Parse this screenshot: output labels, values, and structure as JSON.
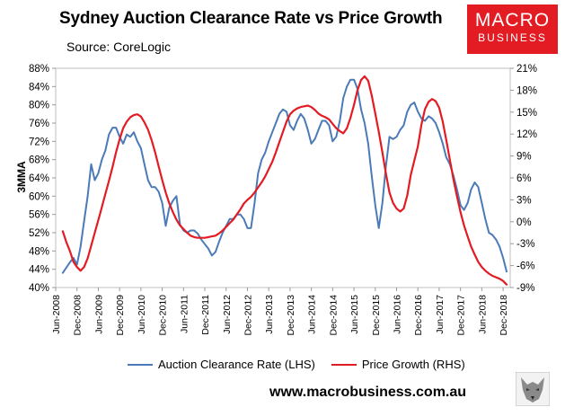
{
  "header": {
    "title": "Sydney Auction Clearance Rate vs Price Growth",
    "source": "Source: CoreLogic"
  },
  "logo": {
    "line1": "MACRO",
    "line2": "BUSINESS"
  },
  "footer": {
    "website": "www.macrobusiness.com.au"
  },
  "colors": {
    "clearance": "#4a7ab7",
    "growth": "#e31b23",
    "logo_bg": "#e31b23"
  },
  "chart_data": {
    "type": "line",
    "ylabel": "3MMA",
    "ylim": [
      40,
      88
    ],
    "y2lim": [
      -9,
      21
    ],
    "y_ticks": [
      "40%",
      "44%",
      "48%",
      "52%",
      "56%",
      "60%",
      "64%",
      "68%",
      "72%",
      "76%",
      "80%",
      "84%",
      "88%"
    ],
    "y2_ticks": [
      "-9%",
      "-6%",
      "-3%",
      "0%",
      "3%",
      "6%",
      "9%",
      "12%",
      "15%",
      "18%",
      "21%"
    ],
    "x_ticks": [
      "Jun-2008",
      "Dec-2008",
      "Jun-2009",
      "Dec-2009",
      "Jun-2010",
      "Dec-2010",
      "Jun-2011",
      "Dec-2011",
      "Jun-2012",
      "Dec-2012",
      "Jun-2013",
      "Dec-2013",
      "Jun-2014",
      "Dec-2014",
      "Jun-2015",
      "Dec-2015",
      "Jun-2016",
      "Dec-2016",
      "Jun-2017",
      "Dec-2017",
      "Jun-2018",
      "Dec-2018"
    ],
    "x_range": [
      "Jun-2008",
      "Dec-2018"
    ],
    "legend_position": "bottom",
    "series": [
      {
        "name": "Auction Clearance Rate (LHS)",
        "axis": "left",
        "points": [
          [
            "Aug-2008",
            43.2
          ],
          [
            "Oct-2008",
            45.5
          ],
          [
            "Nov-2008",
            46.5
          ],
          [
            "Dec-2008",
            45.0
          ],
          [
            "Jan-2009",
            49.0
          ],
          [
            "Feb-2009",
            54.5
          ],
          [
            "Mar-2009",
            60.0
          ],
          [
            "Apr-2009",
            67.0
          ],
          [
            "May-2009",
            63.5
          ],
          [
            "Jun-2009",
            65.0
          ],
          [
            "Jul-2009",
            68.0
          ],
          [
            "Aug-2009",
            70.0
          ],
          [
            "Sep-2009",
            73.5
          ],
          [
            "Oct-2009",
            75.0
          ],
          [
            "Nov-2009",
            75.0
          ],
          [
            "Dec-2009",
            73.0
          ],
          [
            "Jan-2010",
            71.5
          ],
          [
            "Feb-2010",
            73.5
          ],
          [
            "Mar-2010",
            73.0
          ],
          [
            "Apr-2010",
            74.0
          ],
          [
            "May-2010",
            72.0
          ],
          [
            "Jun-2010",
            70.5
          ],
          [
            "Jul-2010",
            67.0
          ],
          [
            "Aug-2010",
            63.5
          ],
          [
            "Sep-2010",
            62.0
          ],
          [
            "Oct-2010",
            62.0
          ],
          [
            "Nov-2010",
            61.0
          ],
          [
            "Dec-2010",
            58.5
          ],
          [
            "Jan-2011",
            53.5
          ],
          [
            "Feb-2011",
            57.5
          ],
          [
            "Mar-2011",
            59.0
          ],
          [
            "Apr-2011",
            60.0
          ],
          [
            "May-2011",
            53.8
          ],
          [
            "Jun-2011",
            52.5
          ],
          [
            "Jul-2011",
            52.0
          ],
          [
            "Aug-2011",
            52.5
          ],
          [
            "Sep-2011",
            52.5
          ],
          [
            "Oct-2011",
            51.8
          ],
          [
            "Nov-2011",
            50.5
          ],
          [
            "Dec-2011",
            49.5
          ],
          [
            "Jan-2012",
            48.5
          ],
          [
            "Feb-2012",
            47.0
          ],
          [
            "Mar-2012",
            47.8
          ],
          [
            "Apr-2012",
            50.0
          ],
          [
            "May-2012",
            52.0
          ],
          [
            "Jun-2012",
            53.5
          ],
          [
            "Jul-2012",
            55.0
          ],
          [
            "Aug-2012",
            55.0
          ],
          [
            "Sep-2012",
            56.0
          ],
          [
            "Oct-2012",
            56.0
          ],
          [
            "Nov-2012",
            55.0
          ],
          [
            "Dec-2012",
            53.0
          ],
          [
            "Jan-2013",
            53.0
          ],
          [
            "Feb-2013",
            58.5
          ],
          [
            "Mar-2013",
            65.0
          ],
          [
            "Apr-2013",
            68.0
          ],
          [
            "May-2013",
            69.5
          ],
          [
            "Jun-2013",
            72.0
          ],
          [
            "Jul-2013",
            74.0
          ],
          [
            "Aug-2013",
            76.0
          ],
          [
            "Sep-2013",
            78.0
          ],
          [
            "Oct-2013",
            79.0
          ],
          [
            "Nov-2013",
            78.5
          ],
          [
            "Dec-2013",
            75.5
          ],
          [
            "Jan-2014",
            74.5
          ],
          [
            "Feb-2014",
            76.5
          ],
          [
            "Mar-2014",
            78.0
          ],
          [
            "Apr-2014",
            77.0
          ],
          [
            "May-2014",
            74.5
          ],
          [
            "Jun-2014",
            71.5
          ],
          [
            "Jul-2014",
            72.5
          ],
          [
            "Aug-2014",
            74.5
          ],
          [
            "Sep-2014",
            76.5
          ],
          [
            "Oct-2014",
            76.5
          ],
          [
            "Nov-2014",
            75.5
          ],
          [
            "Dec-2014",
            72.0
          ],
          [
            "Jan-2015",
            73.0
          ],
          [
            "Feb-2015",
            76.5
          ],
          [
            "Mar-2015",
            81.5
          ],
          [
            "Apr-2015",
            84.0
          ],
          [
            "May-2015",
            85.5
          ],
          [
            "Jun-2015",
            85.5
          ],
          [
            "Jul-2015",
            83.5
          ],
          [
            "Aug-2015",
            79.0
          ],
          [
            "Sep-2015",
            76.0
          ],
          [
            "Oct-2015",
            71.5
          ],
          [
            "Nov-2015",
            64.5
          ],
          [
            "Dec-2015",
            58.0
          ],
          [
            "Jan-2016",
            53.0
          ],
          [
            "Feb-2016",
            58.5
          ],
          [
            "Mar-2016",
            66.5
          ],
          [
            "Apr-2016",
            73.0
          ],
          [
            "May-2016",
            72.5
          ],
          [
            "Jun-2016",
            73.0
          ],
          [
            "Jul-2016",
            74.5
          ],
          [
            "Aug-2016",
            75.5
          ],
          [
            "Sep-2016",
            78.5
          ],
          [
            "Oct-2016",
            80.0
          ],
          [
            "Nov-2016",
            80.5
          ],
          [
            "Dec-2016",
            78.5
          ],
          [
            "Jan-2017",
            77.0
          ],
          [
            "Feb-2017",
            76.5
          ],
          [
            "Mar-2017",
            77.5
          ],
          [
            "Apr-2017",
            77.0
          ],
          [
            "May-2017",
            76.0
          ],
          [
            "Jun-2017",
            74.0
          ],
          [
            "Jul-2017",
            71.5
          ],
          [
            "Aug-2017",
            68.5
          ],
          [
            "Sep-2017",
            67.0
          ],
          [
            "Oct-2017",
            64.5
          ],
          [
            "Nov-2017",
            61.5
          ],
          [
            "Dec-2017",
            58.0
          ],
          [
            "Jan-2018",
            57.0
          ],
          [
            "Feb-2018",
            58.5
          ],
          [
            "Mar-2018",
            61.5
          ],
          [
            "Apr-2018",
            63.0
          ],
          [
            "May-2018",
            62.0
          ],
          [
            "Jun-2018",
            58.5
          ],
          [
            "Jul-2018",
            55.0
          ],
          [
            "Aug-2018",
            52.0
          ],
          [
            "Sep-2018",
            51.5
          ],
          [
            "Oct-2018",
            50.5
          ],
          [
            "Nov-2018",
            49.0
          ],
          [
            "Dec-2018",
            46.5
          ],
          [
            "Jan-2019",
            43.5
          ]
        ]
      },
      {
        "name": "Price Growth (RHS)",
        "axis": "right",
        "points": [
          [
            "Aug-2008",
            -1.3
          ],
          [
            "Sep-2008",
            -2.8
          ],
          [
            "Oct-2008",
            -4.0
          ],
          [
            "Nov-2008",
            -5.5
          ],
          [
            "Dec-2008",
            -6.2
          ],
          [
            "Jan-2009",
            -6.7
          ],
          [
            "Feb-2009",
            -6.2
          ],
          [
            "Mar-2009",
            -5.0
          ],
          [
            "Apr-2009",
            -3.3
          ],
          [
            "May-2009",
            -1.5
          ],
          [
            "Jun-2009",
            0.2
          ],
          [
            "Jul-2009",
            2.0
          ],
          [
            "Aug-2009",
            3.8
          ],
          [
            "Sep-2009",
            5.6
          ],
          [
            "Oct-2009",
            7.5
          ],
          [
            "Nov-2009",
            9.5
          ],
          [
            "Dec-2009",
            11.3
          ],
          [
            "Jan-2010",
            12.8
          ],
          [
            "Feb-2010",
            13.7
          ],
          [
            "Mar-2010",
            14.3
          ],
          [
            "Apr-2010",
            14.6
          ],
          [
            "May-2010",
            14.7
          ],
          [
            "Jun-2010",
            14.4
          ],
          [
            "Jul-2010",
            13.6
          ],
          [
            "Aug-2010",
            12.6
          ],
          [
            "Sep-2010",
            11.2
          ],
          [
            "Oct-2010",
            9.5
          ],
          [
            "Nov-2010",
            7.6
          ],
          [
            "Dec-2010",
            5.7
          ],
          [
            "Jan-2011",
            4.0
          ],
          [
            "Feb-2011",
            2.5
          ],
          [
            "Mar-2011",
            1.3
          ],
          [
            "Apr-2011",
            0.3
          ],
          [
            "May-2011",
            -0.5
          ],
          [
            "Jun-2011",
            -1.0
          ],
          [
            "Jul-2011",
            -1.5
          ],
          [
            "Aug-2011",
            -1.9
          ],
          [
            "Sep-2011",
            -2.1
          ],
          [
            "Oct-2011",
            -2.2
          ],
          [
            "Nov-2011",
            -2.2
          ],
          [
            "Dec-2011",
            -2.2
          ],
          [
            "Jan-2012",
            -2.1
          ],
          [
            "Feb-2012",
            -2.0
          ],
          [
            "Mar-2012",
            -1.9
          ],
          [
            "Apr-2012",
            -1.6
          ],
          [
            "May-2012",
            -1.2
          ],
          [
            "Jun-2012",
            -0.7
          ],
          [
            "Jul-2012",
            -0.2
          ],
          [
            "Aug-2012",
            0.3
          ],
          [
            "Sep-2012",
            1.0
          ],
          [
            "Oct-2012",
            1.7
          ],
          [
            "Nov-2012",
            2.5
          ],
          [
            "Dec-2012",
            3.0
          ],
          [
            "Jan-2013",
            3.4
          ],
          [
            "Feb-2013",
            4.0
          ],
          [
            "Mar-2013",
            4.7
          ],
          [
            "Apr-2013",
            5.4
          ],
          [
            "May-2013",
            6.2
          ],
          [
            "Jun-2013",
            7.2
          ],
          [
            "Jul-2013",
            8.2
          ],
          [
            "Aug-2013",
            9.5
          ],
          [
            "Sep-2013",
            10.9
          ],
          [
            "Oct-2013",
            12.3
          ],
          [
            "Nov-2013",
            13.7
          ],
          [
            "Dec-2013",
            14.7
          ],
          [
            "Jan-2014",
            15.2
          ],
          [
            "Feb-2014",
            15.5
          ],
          [
            "Mar-2014",
            15.7
          ],
          [
            "Apr-2014",
            15.8
          ],
          [
            "May-2014",
            15.9
          ],
          [
            "Jun-2014",
            15.7
          ],
          [
            "Jul-2014",
            15.3
          ],
          [
            "Aug-2014",
            14.8
          ],
          [
            "Sep-2014",
            14.5
          ],
          [
            "Oct-2014",
            14.3
          ],
          [
            "Nov-2014",
            14.0
          ],
          [
            "Dec-2014",
            13.4
          ],
          [
            "Jan-2015",
            12.8
          ],
          [
            "Feb-2015",
            12.4
          ],
          [
            "Mar-2015",
            12.1
          ],
          [
            "Apr-2015",
            12.8
          ],
          [
            "May-2015",
            14.2
          ],
          [
            "Jun-2015",
            16.0
          ],
          [
            "Jul-2015",
            18.0
          ],
          [
            "Aug-2015",
            19.4
          ],
          [
            "Sep-2015",
            19.9
          ],
          [
            "Oct-2015",
            19.3
          ],
          [
            "Nov-2015",
            17.3
          ],
          [
            "Dec-2015",
            14.8
          ],
          [
            "Jan-2016",
            12.3
          ],
          [
            "Feb-2016",
            9.5
          ],
          [
            "Mar-2016",
            6.6
          ],
          [
            "Apr-2016",
            4.0
          ],
          [
            "May-2016",
            2.6
          ],
          [
            "Jun-2016",
            1.8
          ],
          [
            "Jul-2016",
            1.4
          ],
          [
            "Aug-2016",
            1.8
          ],
          [
            "Sep-2016",
            3.6
          ],
          [
            "Oct-2016",
            6.4
          ],
          [
            "Nov-2016",
            8.4
          ],
          [
            "Dec-2016",
            10.3
          ],
          [
            "Jan-2017",
            13.3
          ],
          [
            "Feb-2017",
            15.4
          ],
          [
            "Mar-2017",
            16.4
          ],
          [
            "Apr-2017",
            16.8
          ],
          [
            "May-2017",
            16.5
          ],
          [
            "Jun-2017",
            15.6
          ],
          [
            "Jul-2017",
            13.7
          ],
          [
            "Aug-2017",
            11.2
          ],
          [
            "Sep-2017",
            8.5
          ],
          [
            "Oct-2017",
            5.8
          ],
          [
            "Nov-2017",
            3.5
          ],
          [
            "Dec-2017",
            1.3
          ],
          [
            "Jan-2018",
            -0.5
          ],
          [
            "Feb-2018",
            -2.0
          ],
          [
            "Mar-2018",
            -3.4
          ],
          [
            "Apr-2018",
            -4.5
          ],
          [
            "May-2018",
            -5.5
          ],
          [
            "Jun-2018",
            -6.2
          ],
          [
            "Jul-2018",
            -6.7
          ],
          [
            "Aug-2018",
            -7.1
          ],
          [
            "Sep-2018",
            -7.4
          ],
          [
            "Oct-2018",
            -7.6
          ],
          [
            "Nov-2018",
            -7.8
          ],
          [
            "Dec-2018",
            -8.1
          ],
          [
            "Jan-2019",
            -8.6
          ]
        ]
      }
    ]
  }
}
